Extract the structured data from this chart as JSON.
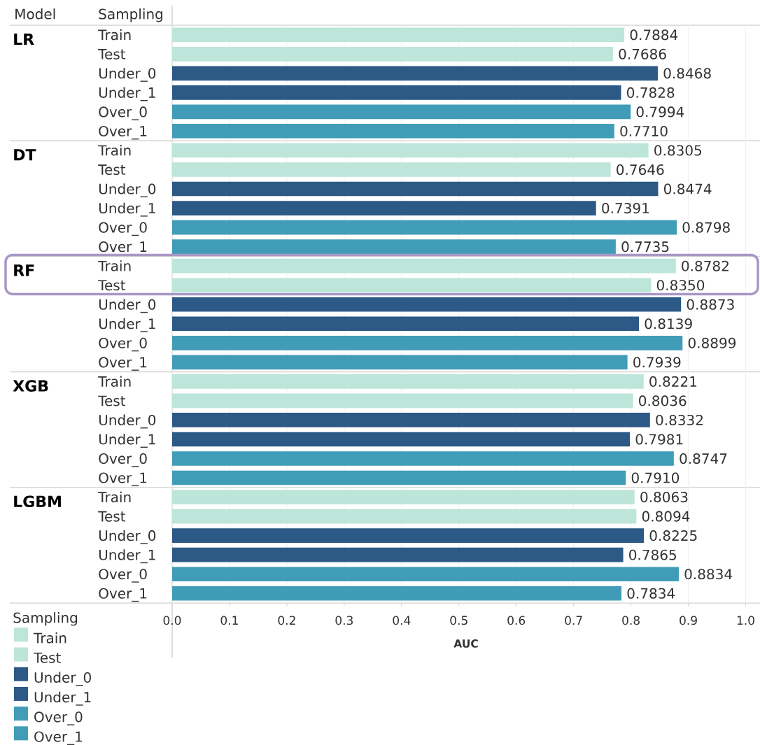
{
  "chart_data": {
    "type": "bar",
    "orientation": "horizontal",
    "xlabel": "AUC",
    "ylabel": "Model",
    "legend_title": "Sampling",
    "annotations": [
      "Sampling"
    ],
    "categories": [
      "LR",
      "DT",
      "RF",
      "XGB",
      "LGBM"
    ],
    "series": [
      {
        "name": "Train",
        "color": "#bde5d9",
        "values": [
          0.7884,
          0.8305,
          0.8782,
          0.8221,
          0.8063
        ],
        "value_labels": [
          "0.7884",
          "0.8305",
          "0.8782",
          "0.8221",
          "0.8063"
        ]
      },
      {
        "name": "Test",
        "color": "#bde5d9",
        "values": [
          0.7686,
          0.7646,
          0.835,
          0.8036,
          0.8094
        ],
        "value_labels": [
          "0.7686",
          "0.7646",
          "0.8350",
          "0.8036",
          "0.8094"
        ]
      },
      {
        "name": "Under_0",
        "color": "#2c5985",
        "values": [
          0.8468,
          0.8474,
          0.8873,
          0.8332,
          0.8225
        ],
        "value_labels": [
          "0.8468",
          "0.8474",
          "0.8873",
          "0.8332",
          "0.8225"
        ]
      },
      {
        "name": "Under_1",
        "color": "#2c5985",
        "values": [
          0.7828,
          0.7391,
          0.8139,
          0.7981,
          0.7865
        ],
        "value_labels": [
          "0.7828",
          "0.7391",
          "0.8139",
          "0.7981",
          "0.7865"
        ]
      },
      {
        "name": "Over_0",
        "color": "#419db7",
        "values": [
          0.7994,
          0.8798,
          0.8899,
          0.8747,
          0.8834
        ],
        "value_labels": [
          "0.7994",
          "0.8798",
          "0.8899",
          "0.8747",
          "0.8834"
        ]
      },
      {
        "name": "Over_1",
        "color": "#419db7",
        "values": [
          0.771,
          0.7735,
          0.7939,
          0.791,
          0.7834
        ],
        "value_labels": [
          "0.7710",
          "0.7735",
          "0.7939",
          "0.7910",
          "0.7834"
        ]
      }
    ],
    "xlim": [
      0,
      1.025
    ],
    "xticks": [
      {
        "value": 0,
        "label": "0.0"
      },
      {
        "value": 0.1,
        "label": "0.1"
      },
      {
        "value": 0.2,
        "label": "0.2"
      },
      {
        "value": 0.3,
        "label": "0.3"
      },
      {
        "value": 0.4,
        "label": "0.4"
      },
      {
        "value": 0.5,
        "label": "0.5"
      },
      {
        "value": 0.6,
        "label": "0.6"
      },
      {
        "value": 0.7,
        "label": "0.7"
      },
      {
        "value": 0.8,
        "label": "0.8"
      },
      {
        "value": 0.9,
        "label": "0.9"
      },
      {
        "value": 1,
        "label": "1.0"
      }
    ],
    "grid": "x",
    "legend": "bottom left"
  }
}
